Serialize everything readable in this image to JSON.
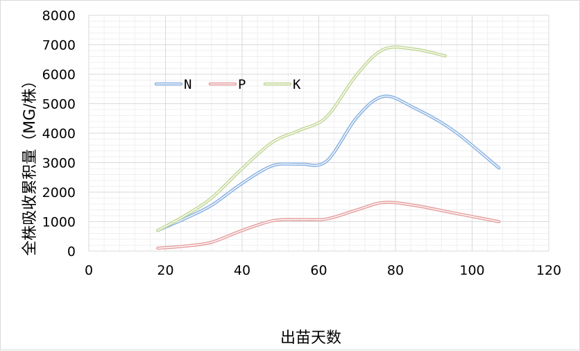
{
  "chart_data": {
    "type": "line",
    "title": "",
    "xlabel": "出苗天数",
    "ylabel": "全株吸收累积量（MG/株）",
    "xlim": [
      0,
      120
    ],
    "ylim": [
      0,
      8000
    ],
    "x_ticks": [
      "0",
      "20",
      "40",
      "60",
      "80",
      "100",
      "120"
    ],
    "y_ticks": [
      "0",
      "1000",
      "2000",
      "3000",
      "4000",
      "5000",
      "6000",
      "7000",
      "8000"
    ],
    "grid": true,
    "legend_position": "top-left",
    "series": [
      {
        "name": "N",
        "color": "#8eb4e3",
        "x": [
          18,
          25,
          32,
          40,
          48,
          55,
          62,
          70,
          77,
          85,
          95,
          107
        ],
        "y": [
          700,
          1100,
          1550,
          2300,
          2900,
          2950,
          3050,
          4550,
          5250,
          4850,
          4100,
          2820
        ]
      },
      {
        "name": "P",
        "color": "#e6a3a3",
        "x": [
          18,
          25,
          32,
          40,
          48,
          55,
          62,
          70,
          77,
          85,
          95,
          107
        ],
        "y": [
          100,
          170,
          300,
          700,
          1030,
          1070,
          1090,
          1400,
          1650,
          1550,
          1300,
          1000
        ]
      },
      {
        "name": "K",
        "color": "#c4d89a",
        "x": [
          18,
          25,
          32,
          40,
          48,
          55,
          62,
          70,
          77,
          85,
          93
        ],
        "y": [
          700,
          1200,
          1800,
          2800,
          3700,
          4100,
          4550,
          6000,
          6850,
          6850,
          6620
        ]
      }
    ]
  }
}
